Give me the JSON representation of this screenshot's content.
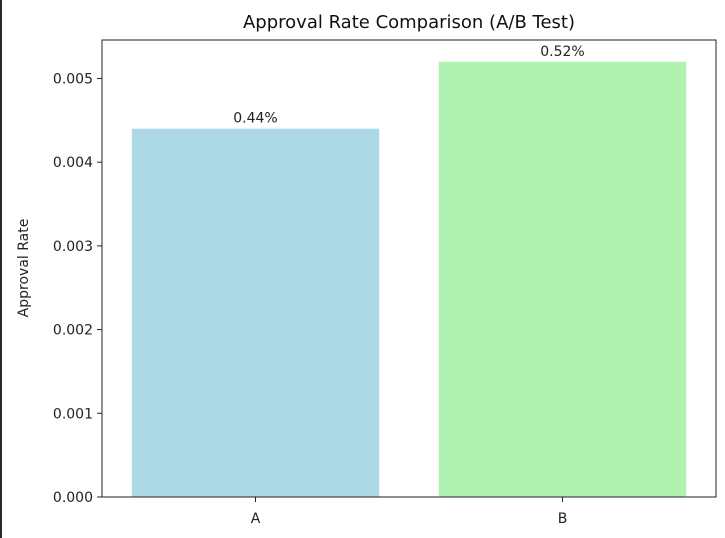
{
  "chart_data": {
    "type": "bar",
    "title": "Approval Rate Comparison (A/B Test)",
    "xlabel": "",
    "ylabel": "Approval Rate",
    "categories": [
      "A",
      "B"
    ],
    "values": [
      0.0044,
      0.0052
    ],
    "data_labels": [
      "0.44%",
      "0.52%"
    ],
    "colors": [
      "#add8e6",
      "#b0f2b0"
    ],
    "ylim": [
      0,
      0.00546
    ],
    "yticks": [
      0,
      0.001,
      0.002,
      0.003,
      0.004,
      0.005
    ],
    "ytick_labels": [
      "0.000",
      "0.001",
      "0.002",
      "0.003",
      "0.004",
      "0.005"
    ],
    "grid": false,
    "legend": "none"
  }
}
